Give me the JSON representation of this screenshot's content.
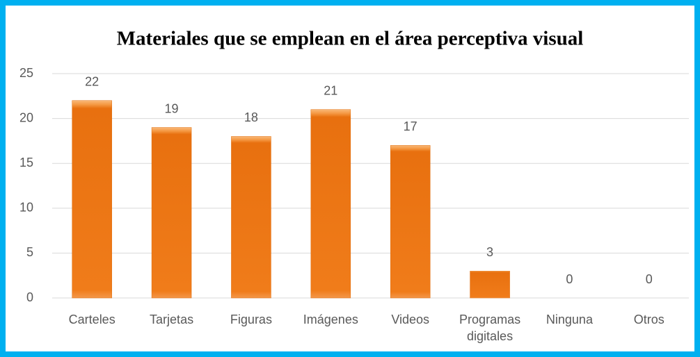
{
  "chart_data": {
    "type": "bar",
    "title": "Materiales que se emplean en el área perceptiva visual",
    "categories": [
      "Carteles",
      "Tarjetas",
      "Figuras",
      "Imágenes",
      "Videos",
      "Programas digitales",
      "Ninguna",
      "Otros"
    ],
    "values": [
      22,
      19,
      18,
      21,
      17,
      3,
      0,
      0
    ],
    "color": "#f07c1a",
    "ylim": [
      0,
      25
    ],
    "yticks": [
      0,
      5,
      10,
      15,
      20,
      25
    ],
    "grid": true
  }
}
